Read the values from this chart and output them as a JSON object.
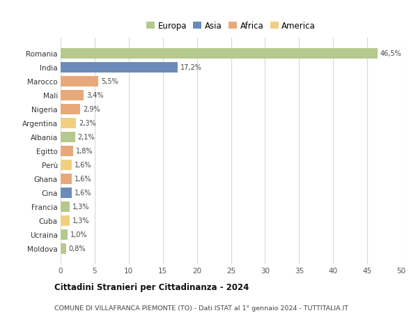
{
  "countries": [
    "Romania",
    "India",
    "Marocco",
    "Mali",
    "Nigeria",
    "Argentina",
    "Albania",
    "Egitto",
    "Perù",
    "Ghana",
    "Cina",
    "Francia",
    "Cuba",
    "Ucraina",
    "Moldova"
  ],
  "values": [
    46.5,
    17.2,
    5.5,
    3.4,
    2.9,
    2.3,
    2.1,
    1.8,
    1.6,
    1.6,
    1.6,
    1.3,
    1.3,
    1.0,
    0.8
  ],
  "labels": [
    "46,5%",
    "17,2%",
    "5,5%",
    "3,4%",
    "2,9%",
    "2,3%",
    "2,1%",
    "1,8%",
    "1,6%",
    "1,6%",
    "1,6%",
    "1,3%",
    "1,3%",
    "1,0%",
    "0,8%"
  ],
  "colors": [
    "#b5c98e",
    "#6b8cba",
    "#e8a97a",
    "#e8a97a",
    "#e8a97a",
    "#f0d080",
    "#b5c98e",
    "#e8a97a",
    "#f0d080",
    "#e8a97a",
    "#6b8cba",
    "#b5c98e",
    "#f0d080",
    "#b5c98e",
    "#b5c98e"
  ],
  "legend_labels": [
    "Europa",
    "Asia",
    "Africa",
    "America"
  ],
  "legend_colors": [
    "#b5c98e",
    "#6b8cba",
    "#e8a97a",
    "#f0d080"
  ],
  "title": "Cittadini Stranieri per Cittadinanza - 2024",
  "subtitle": "COMUNE DI VILLAFRANCA PIEMONTE (TO) - Dati ISTAT al 1° gennaio 2024 - TUTTITALIA.IT",
  "xlim": [
    0,
    50
  ],
  "xticks": [
    0,
    5,
    10,
    15,
    20,
    25,
    30,
    35,
    40,
    45,
    50
  ],
  "background_color": "#ffffff",
  "grid_color": "#d8d8d8",
  "bar_height": 0.75
}
